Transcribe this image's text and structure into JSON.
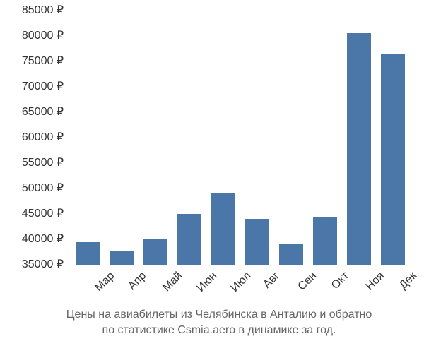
{
  "chart": {
    "type": "bar",
    "categories": [
      "Мар",
      "Апр",
      "Май",
      "Июн",
      "Июл",
      "Авг",
      "Сен",
      "Окт",
      "Ноя",
      "Дек"
    ],
    "values": [
      39500,
      37800,
      40200,
      45000,
      49000,
      44000,
      39000,
      44500,
      80500,
      76500
    ],
    "bar_color": "#4a76a8",
    "background_color": "#ffffff",
    "ylim": [
      35000,
      85000
    ],
    "ytick_step": 5000,
    "ytick_labels": [
      "35000 ₽",
      "40000 ₽",
      "45000 ₽",
      "50000 ₽",
      "55000 ₽",
      "60000 ₽",
      "65000 ₽",
      "70000 ₽",
      "75000 ₽",
      "80000 ₽",
      "85000 ₽"
    ],
    "bar_width_ratio": 0.72,
    "label_fontsize": 16,
    "label_color": "#333333",
    "caption_line1": "Цены на авиабилеты из Челябинска в Анталию и обратно",
    "caption_line2": "по статистике Csmia.aero в динамике за год.",
    "caption_color": "#666666",
    "caption_fontsize": 16
  }
}
